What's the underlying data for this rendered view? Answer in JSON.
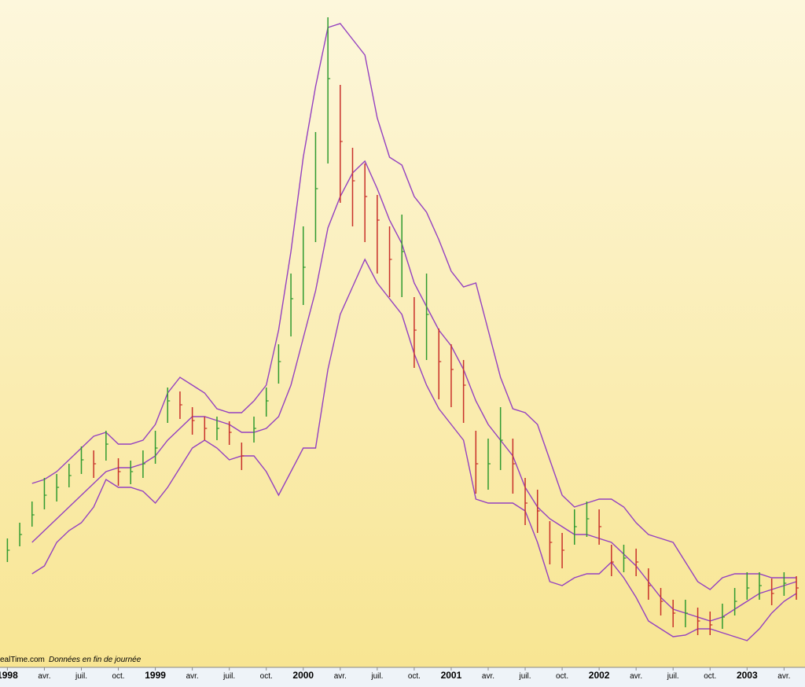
{
  "chart_data": {
    "type": "ohlc",
    "source": "ealTime.com",
    "note": "Données en fin de journée",
    "x": [
      0,
      1,
      2,
      3,
      4,
      5,
      6,
      7,
      8,
      9,
      10,
      11,
      12,
      13,
      14,
      15,
      16,
      17,
      18,
      19,
      20,
      21,
      22,
      23,
      24,
      25,
      26,
      27,
      28,
      29,
      30,
      31,
      32,
      33,
      34,
      35,
      36,
      37,
      38,
      39,
      40,
      41,
      42,
      43,
      44,
      45,
      46,
      47,
      48,
      49,
      50,
      51,
      52,
      53,
      54,
      55,
      56,
      57,
      58,
      59,
      60,
      61,
      62,
      63,
      64
    ],
    "xlim": [
      -0.6,
      64.7
    ],
    "xticks": [
      {
        "value": 0,
        "label": "1998"
      },
      {
        "value": 3,
        "label": "avr."
      },
      {
        "value": 6,
        "label": "juil."
      },
      {
        "value": 9,
        "label": "oct."
      },
      {
        "value": 12,
        "label": "1999"
      },
      {
        "value": 15,
        "label": "avr."
      },
      {
        "value": 18,
        "label": "juil."
      },
      {
        "value": 21,
        "label": "oct."
      },
      {
        "value": 24,
        "label": "2000"
      },
      {
        "value": 27,
        "label": "avr."
      },
      {
        "value": 30,
        "label": "juil."
      },
      {
        "value": 33,
        "label": "oct."
      },
      {
        "value": 36,
        "label": "2001"
      },
      {
        "value": 39,
        "label": "avr."
      },
      {
        "value": 42,
        "label": "juil."
      },
      {
        "value": 45,
        "label": "oct."
      },
      {
        "value": 48,
        "label": "2002"
      },
      {
        "value": 51,
        "label": "avr."
      },
      {
        "value": 54,
        "label": "juil."
      },
      {
        "value": 57,
        "label": "oct."
      },
      {
        "value": 60,
        "label": "2003"
      },
      {
        "value": 63,
        "label": "avr."
      }
    ],
    "year_ticks": [
      0,
      4,
      8,
      12,
      16,
      20
    ],
    "ylim": [
      0,
      848
    ],
    "up_color": "#2f9a2f",
    "down_color": "#c8302a",
    "high": [
      163,
      183,
      210,
      240,
      245,
      258,
      280,
      275,
      300,
      265,
      262,
      275,
      300,
      355,
      350,
      330,
      318,
      318,
      312,
      285,
      318,
      355,
      410,
      500,
      560,
      680,
      826,
      740,
      660,
      640,
      600,
      560,
      575,
      470,
      500,
      430,
      410,
      390,
      300,
      290,
      330,
      290,
      240,
      225,
      185,
      170,
      200,
      210,
      200,
      155,
      155,
      150,
      125,
      100,
      85,
      85,
      75,
      70,
      80,
      100,
      120,
      120,
      112,
      120,
      115
    ],
    "low": [
      133,
      153,
      178,
      200,
      210,
      228,
      245,
      240,
      262,
      230,
      232,
      240,
      258,
      310,
      315,
      295,
      288,
      288,
      282,
      250,
      285,
      318,
      360,
      420,
      460,
      540,
      640,
      590,
      560,
      540,
      500,
      470,
      470,
      380,
      390,
      340,
      330,
      310,
      220,
      225,
      250,
      220,
      180,
      170,
      130,
      125,
      155,
      165,
      155,
      115,
      120,
      115,
      85,
      65,
      50,
      50,
      40,
      40,
      48,
      65,
      85,
      85,
      78,
      90,
      85
    ],
    "close": [
      148,
      168,
      193,
      218,
      228,
      243,
      263,
      258,
      283,
      248,
      248,
      258,
      278,
      338,
      333,
      313,
      303,
      303,
      298,
      268,
      303,
      338,
      388,
      468,
      508,
      608,
      748,
      668,
      618,
      598,
      568,
      518,
      528,
      428,
      448,
      388,
      378,
      358,
      258,
      258,
      288,
      258,
      208,
      198,
      158,
      148,
      178,
      188,
      178,
      133,
      138,
      133,
      103,
      83,
      68,
      68,
      58,
      53,
      63,
      83,
      100,
      103,
      93,
      106,
      100
    ],
    "bands_color": "#9440c0",
    "bands": [
      {
        "values": [
          null,
          null,
          233,
          238,
          248,
          263,
          278,
          293,
          298,
          283,
          283,
          288,
          308,
          348,
          368,
          358,
          348,
          328,
          323,
          323,
          338,
          358,
          428,
          528,
          648,
          738,
          813,
          818,
          798,
          778,
          698,
          648,
          638,
          598,
          578,
          543,
          503,
          483,
          488,
          428,
          368,
          328,
          323,
          308,
          263,
          218,
          203,
          208,
          213,
          213,
          203,
          183,
          168,
          163,
          158,
          133,
          108,
          98,
          113,
          118,
          118,
          118,
          113,
          113,
          113
        ]
      },
      {
        "values": [
          null,
          null,
          158,
          173,
          188,
          203,
          218,
          233,
          248,
          253,
          253,
          258,
          268,
          288,
          303,
          318,
          318,
          313,
          308,
          298,
          298,
          303,
          318,
          358,
          418,
          478,
          558,
          598,
          628,
          643,
          608,
          568,
          538,
          488,
          458,
          428,
          408,
          378,
          338,
          308,
          288,
          268,
          228,
          203,
          188,
          178,
          168,
          168,
          163,
          158,
          143,
          128,
          108,
          88,
          73,
          68,
          63,
          58,
          63,
          73,
          83,
          93,
          98,
          103,
          108
        ]
      },
      {
        "values": [
          null,
          null,
          118,
          128,
          158,
          173,
          183,
          203,
          238,
          228,
          228,
          223,
          208,
          228,
          253,
          278,
          288,
          278,
          263,
          268,
          268,
          248,
          218,
          248,
          278,
          278,
          378,
          448,
          483,
          518,
          488,
          468,
          448,
          398,
          358,
          328,
          308,
          288,
          213,
          208,
          208,
          208,
          198,
          158,
          108,
          103,
          113,
          118,
          118,
          133,
          113,
          88,
          58,
          48,
          38,
          40,
          48,
          48,
          43,
          38,
          33,
          48,
          68,
          83,
          93
        ]
      }
    ]
  }
}
